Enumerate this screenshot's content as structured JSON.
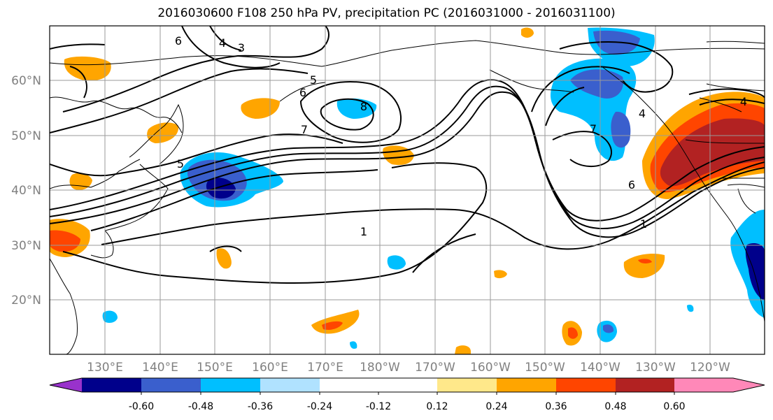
{
  "title": "2016030600 F108 250 hPa PV, precipitation PC (2016031000 - 2016031100)",
  "latitude_labels": [
    "60°N",
    "50°N",
    "40°N",
    "30°N",
    "20°N"
  ],
  "longitude_labels": [
    "130°E",
    "140°E",
    "150°E",
    "160°E",
    "170°E",
    "180°W",
    "170°W",
    "160°W",
    "150°W",
    "140°W",
    "130°W",
    "120°W"
  ],
  "colorbar": {
    "colors": [
      "#9932cc",
      "#00008b",
      "#3a5fcd",
      "#00bfff",
      "#b0e2ff",
      "#ffffff",
      "#ffffff",
      "#ffe88a",
      "#ffa500",
      "#ff4500",
      "#b22222",
      "#ff88b8"
    ],
    "tick_labels": [
      "-0.60",
      "-0.48",
      "-0.36",
      "-0.24",
      "-0.12",
      "0.12",
      "0.24",
      "0.36",
      "0.48",
      "0.60"
    ]
  },
  "contour_labels": [
    "6",
    "4",
    "3",
    "6",
    "5",
    "8",
    "7",
    "5",
    "1",
    "7",
    "6",
    "1",
    "4",
    "4"
  ]
}
